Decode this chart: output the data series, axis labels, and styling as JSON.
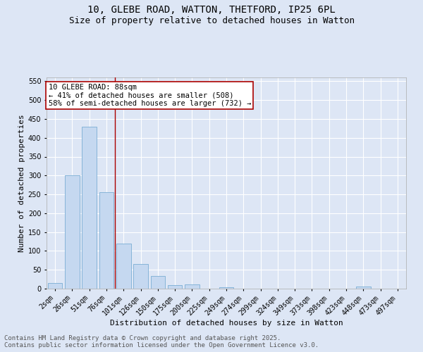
{
  "title_line1": "10, GLEBE ROAD, WATTON, THETFORD, IP25 6PL",
  "title_line2": "Size of property relative to detached houses in Watton",
  "xlabel": "Distribution of detached houses by size in Watton",
  "ylabel": "Number of detached properties",
  "bar_color": "#c5d8f0",
  "bar_edge_color": "#7aadd4",
  "background_color": "#dde6f5",
  "grid_color": "#ffffff",
  "categories": [
    "2sqm",
    "26sqm",
    "51sqm",
    "76sqm",
    "101sqm",
    "126sqm",
    "150sqm",
    "175sqm",
    "200sqm",
    "225sqm",
    "249sqm",
    "274sqm",
    "299sqm",
    "324sqm",
    "349sqm",
    "373sqm",
    "398sqm",
    "423sqm",
    "448sqm",
    "473sqm",
    "497sqm"
  ],
  "values": [
    15,
    300,
    430,
    255,
    120,
    65,
    33,
    10,
    12,
    0,
    3,
    0,
    0,
    0,
    0,
    0,
    0,
    0,
    5,
    0,
    0
  ],
  "ylim": [
    0,
    560
  ],
  "yticks": [
    0,
    50,
    100,
    150,
    200,
    250,
    300,
    350,
    400,
    450,
    500,
    550
  ],
  "annotation_text": "10 GLEBE ROAD: 88sqm\n← 41% of detached houses are smaller (508)\n58% of semi-detached houses are larger (732) →",
  "vline_color": "#aa0000",
  "footer_line1": "Contains HM Land Registry data © Crown copyright and database right 2025.",
  "footer_line2": "Contains public sector information licensed under the Open Government Licence v3.0.",
  "title_fontsize": 10,
  "subtitle_fontsize": 9,
  "axis_label_fontsize": 8,
  "tick_fontsize": 7,
  "annotation_fontsize": 7.5,
  "footer_fontsize": 6.5
}
